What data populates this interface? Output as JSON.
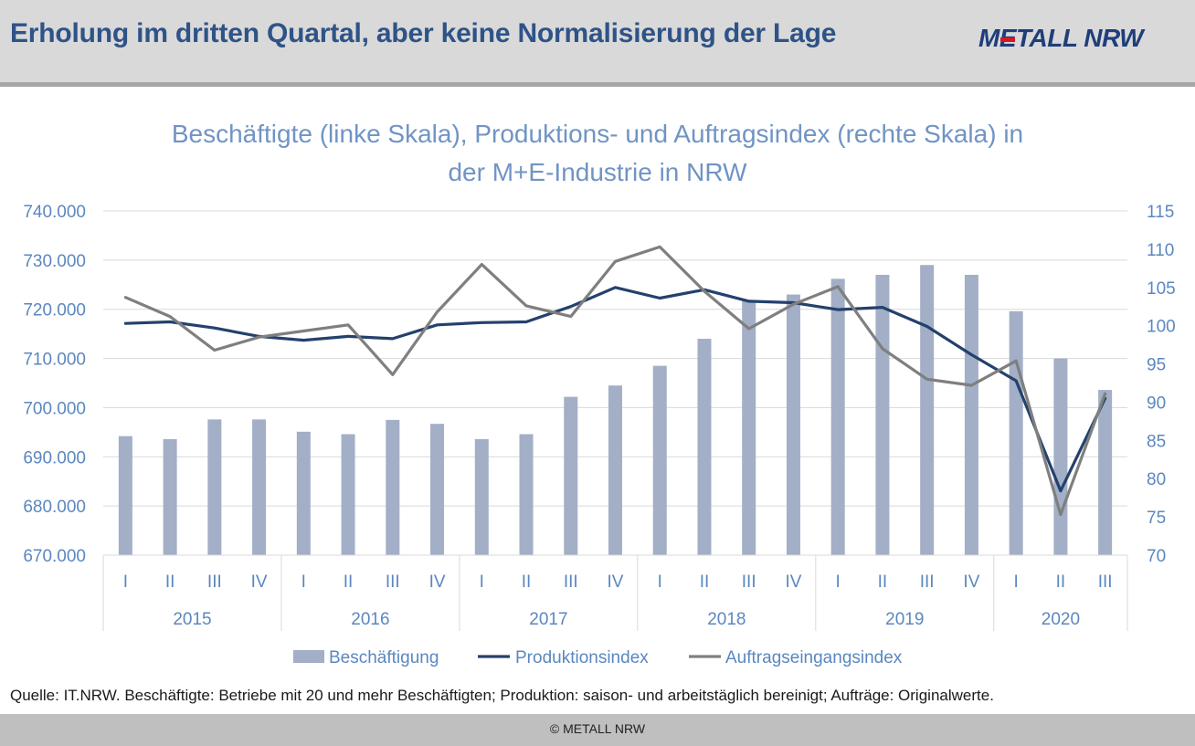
{
  "header": {
    "title": "Erholung im dritten Quartal, aber keine Normalisierung der Lage",
    "logo_text": "METALL NRW"
  },
  "chart_data": {
    "type": "bar",
    "title": "Beschäftigte (linke Skala), Produktions- und Auftragsindex (rechte Skala) in der M+E-Industrie in NRW",
    "title_line1": "Beschäftigte (linke Skala), Produktions- und Auftragsindex (rechte Skala) in",
    "title_line2": "der M+E-Industrie in NRW",
    "categories": [
      "I",
      "II",
      "III",
      "IV",
      "I",
      "II",
      "III",
      "IV",
      "I",
      "II",
      "III",
      "IV",
      "I",
      "II",
      "III",
      "IV",
      "I",
      "II",
      "III",
      "IV",
      "I",
      "II",
      "III"
    ],
    "years": [
      {
        "label": "2015",
        "quarters": 4
      },
      {
        "label": "2016",
        "quarters": 4
      },
      {
        "label": "2017",
        "quarters": 4
      },
      {
        "label": "2018",
        "quarters": 4
      },
      {
        "label": "2019",
        "quarters": 4
      },
      {
        "label": "2020",
        "quarters": 3
      }
    ],
    "left_axis": {
      "ylim": [
        670000,
        740000
      ],
      "ticks": [
        670000,
        680000,
        690000,
        700000,
        710000,
        720000,
        730000,
        740000
      ],
      "tick_labels": [
        "670.000",
        "680.000",
        "690.000",
        "700.000",
        "710.000",
        "720.000",
        "730.000",
        "740.000"
      ]
    },
    "right_axis": {
      "ylim": [
        70,
        115
      ],
      "ticks": [
        70,
        75,
        80,
        85,
        90,
        95,
        100,
        105,
        110,
        115
      ],
      "tick_labels": [
        "70",
        "75",
        "80",
        "85",
        "90",
        "95",
        "100",
        "105",
        "110",
        "115"
      ]
    },
    "series": [
      {
        "name": "Beschäftigung",
        "kind": "bar",
        "axis": "left",
        "color": "#a2afc6",
        "values": [
          694200,
          693600,
          697600,
          697600,
          695100,
          694600,
          697500,
          696700,
          693600,
          694600,
          702200,
          704500,
          708500,
          714000,
          721700,
          723000,
          726200,
          727000,
          729000,
          727000,
          719600,
          710000,
          703600
        ]
      },
      {
        "name": "Produktionsindex",
        "kind": "line",
        "axis": "right",
        "color": "#24416d",
        "values": [
          100.3,
          100.5,
          99.7,
          98.6,
          98.1,
          98.6,
          98.3,
          100.1,
          100.4,
          100.5,
          102.5,
          105.0,
          103.6,
          104.7,
          103.2,
          103.0,
          102.1,
          102.4,
          99.9,
          96.2,
          92.8,
          78.4,
          90.5
        ]
      },
      {
        "name": "Auftragseingangsindex",
        "kind": "line",
        "axis": "right",
        "color": "#7f7f7f",
        "values": [
          103.7,
          101.2,
          96.8,
          98.5,
          99.3,
          100.1,
          93.6,
          101.8,
          108.0,
          102.6,
          101.2,
          108.4,
          110.3,
          104.5,
          99.6,
          102.8,
          105.1,
          97.0,
          93.0,
          92.2,
          95.4,
          75.3,
          91.1
        ]
      }
    ],
    "legend": [
      {
        "label": "Beschäftigung",
        "color": "#a2afc6",
        "kind": "bar"
      },
      {
        "label": "Produktionsindex",
        "color": "#24416d",
        "kind": "line"
      },
      {
        "label": "Auftragseingangsindex",
        "color": "#7f7f7f",
        "kind": "line"
      }
    ],
    "legend_position": "bottom",
    "grid": true
  },
  "source_note": "Quelle: IT.NRW. Beschäftigte: Betriebe mit 20 und mehr Beschäftigten; Produktion: saison- und arbeitstäglich bereinigt; Aufträge: Originalwerte.",
  "footer": {
    "copyright": "© METALL NRW"
  }
}
